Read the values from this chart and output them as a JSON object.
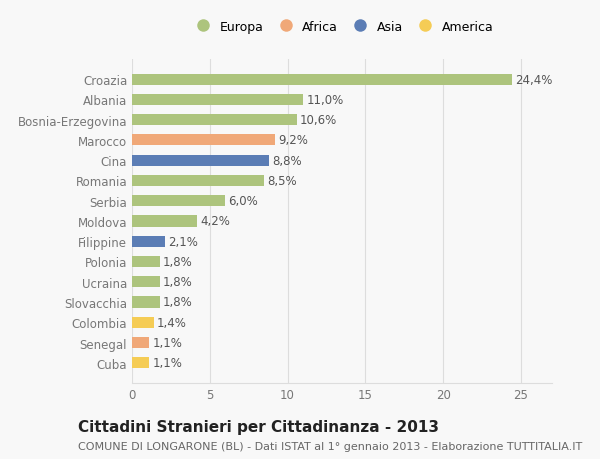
{
  "categories": [
    "Cuba",
    "Senegal",
    "Colombia",
    "Slovacchia",
    "Ucraina",
    "Polonia",
    "Filippine",
    "Moldova",
    "Serbia",
    "Romania",
    "Cina",
    "Marocco",
    "Bosnia-Erzegovina",
    "Albania",
    "Croazia"
  ],
  "values": [
    1.1,
    1.1,
    1.4,
    1.8,
    1.8,
    1.8,
    2.1,
    4.2,
    6.0,
    8.5,
    8.8,
    9.2,
    10.6,
    11.0,
    24.4
  ],
  "colors": [
    "#f5cc55",
    "#f0a878",
    "#f5cc55",
    "#adc47d",
    "#adc47d",
    "#adc47d",
    "#5b7db5",
    "#adc47d",
    "#adc47d",
    "#adc47d",
    "#5b7db5",
    "#f0a878",
    "#adc47d",
    "#adc47d",
    "#adc47d"
  ],
  "labels": [
    "1,1%",
    "1,1%",
    "1,4%",
    "1,8%",
    "1,8%",
    "1,8%",
    "2,1%",
    "4,2%",
    "6,0%",
    "8,5%",
    "8,8%",
    "9,2%",
    "10,6%",
    "11,0%",
    "24,4%"
  ],
  "legend_labels": [
    "Europa",
    "Africa",
    "Asia",
    "America"
  ],
  "legend_colors": [
    "#adc47d",
    "#f0a878",
    "#5b7db5",
    "#f5cc55"
  ],
  "title": "Cittadini Stranieri per Cittadinanza - 2013",
  "subtitle": "COMUNE DI LONGARONE (BL) - Dati ISTAT al 1° gennaio 2013 - Elaborazione TUTTITALIA.IT",
  "xlim": [
    0,
    27
  ],
  "xticks": [
    0,
    5,
    10,
    15,
    20,
    25
  ],
  "background_color": "#f8f8f8",
  "plot_bg_color": "#f8f8f8",
  "grid_color": "#dddddd",
  "bar_height": 0.55,
  "title_fontsize": 11,
  "subtitle_fontsize": 8,
  "tick_fontsize": 8.5,
  "label_fontsize": 8.5,
  "label_color": "#555555",
  "ytick_color": "#777777"
}
